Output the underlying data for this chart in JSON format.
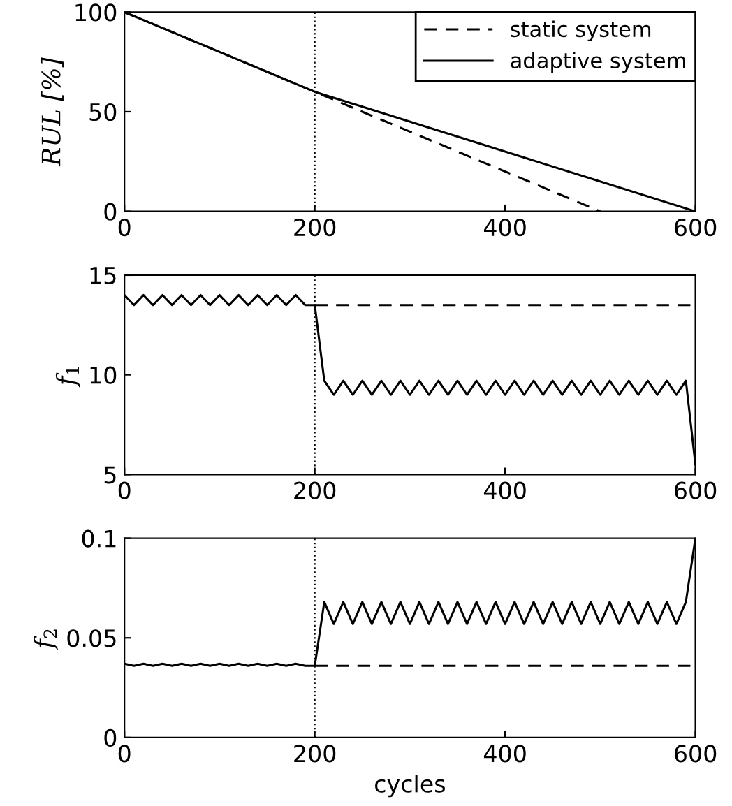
{
  "chart_data": [
    {
      "type": "line",
      "ylabel": "RUL [%]",
      "xlim": [
        0,
        600
      ],
      "xticks": [
        0,
        200,
        400,
        600
      ],
      "ylim": [
        0,
        100
      ],
      "yticks": [
        0,
        50,
        100
      ],
      "grid": false,
      "legend": "top right",
      "marker": "none",
      "ref_lines": [
        {
          "axis": "x",
          "value": 200,
          "line_style": "dotted",
          "color": "#000000"
        }
      ],
      "series": [
        {
          "name": "static system",
          "color": "#000000",
          "line_style": "dashed",
          "x": [
            0,
            200,
            500
          ],
          "values": [
            100,
            60,
            0
          ]
        },
        {
          "name": "adaptive system",
          "color": "#000000",
          "line_style": "solid",
          "x": [
            0,
            200,
            600
          ],
          "values": [
            100,
            60,
            0
          ]
        }
      ]
    },
    {
      "type": "line",
      "ylabel": "f$_{1}$",
      "xlim": [
        0,
        600
      ],
      "xticks": [
        0,
        200,
        400,
        600
      ],
      "ylim": [
        5,
        15
      ],
      "yticks": [
        5,
        10,
        15
      ],
      "grid": false,
      "marker": "none",
      "ref_lines": [
        {
          "axis": "x",
          "value": 200,
          "line_style": "dotted",
          "color": "#000000"
        }
      ],
      "series": [
        {
          "color": "#000000",
          "line_style": "dashed",
          "x": [
            200,
            600
          ],
          "values": [
            13.5,
            13.5
          ]
        },
        {
          "color": "#000000",
          "line_style": "solid",
          "x": [
            0,
            10,
            20,
            30,
            40,
            50,
            60,
            70,
            80,
            90,
            100,
            110,
            120,
            130,
            140,
            150,
            160,
            170,
            180,
            190,
            200,
            210,
            220,
            230,
            240,
            250,
            260,
            270,
            280,
            290,
            300,
            310,
            320,
            330,
            340,
            350,
            360,
            370,
            380,
            390,
            400,
            410,
            420,
            430,
            440,
            450,
            460,
            470,
            480,
            490,
            500,
            510,
            520,
            530,
            540,
            550,
            560,
            570,
            580,
            590,
            600
          ],
          "values": [
            14,
            13.5,
            14,
            13.5,
            14,
            13.5,
            14,
            13.5,
            14,
            13.5,
            14,
            13.5,
            14,
            13.5,
            14,
            13.5,
            14,
            13.5,
            14,
            13.5,
            13.5,
            9.7,
            9,
            9.7,
            9,
            9.7,
            9,
            9.7,
            9,
            9.7,
            9,
            9.7,
            9,
            9.7,
            9,
            9.7,
            9,
            9.7,
            9,
            9.7,
            9,
            9.7,
            9,
            9.7,
            9,
            9.7,
            9,
            9.7,
            9,
            9.7,
            9,
            9.7,
            9,
            9.7,
            9,
            9.7,
            9,
            9.7,
            9,
            9.7,
            5.5
          ]
        }
      ]
    },
    {
      "type": "line",
      "ylabel": "f$_{2}$",
      "xlabel": "cycles",
      "xlim": [
        0,
        600
      ],
      "xticks": [
        0,
        200,
        400,
        600
      ],
      "ylim": [
        0,
        0.1
      ],
      "yticks": [
        0,
        0.05,
        0.1
      ],
      "grid": false,
      "marker": "none",
      "ref_lines": [
        {
          "axis": "x",
          "value": 200,
          "line_style": "dotted",
          "color": "#000000"
        }
      ],
      "series": [
        {
          "color": "#000000",
          "line_style": "dashed",
          "x": [
            200,
            600
          ],
          "values": [
            0.036,
            0.036
          ]
        },
        {
          "color": "#000000",
          "line_style": "solid",
          "x": [
            0,
            10,
            20,
            30,
            40,
            50,
            60,
            70,
            80,
            90,
            100,
            110,
            120,
            130,
            140,
            150,
            160,
            170,
            180,
            190,
            200,
            210,
            220,
            230,
            240,
            250,
            260,
            270,
            280,
            290,
            300,
            310,
            320,
            330,
            340,
            350,
            360,
            370,
            380,
            390,
            400,
            410,
            420,
            430,
            440,
            450,
            460,
            470,
            480,
            490,
            500,
            510,
            520,
            530,
            540,
            550,
            560,
            570,
            580,
            590,
            600
          ],
          "values": [
            0.037,
            0.036,
            0.037,
            0.036,
            0.037,
            0.036,
            0.037,
            0.036,
            0.037,
            0.036,
            0.037,
            0.036,
            0.037,
            0.036,
            0.037,
            0.036,
            0.037,
            0.036,
            0.037,
            0.036,
            0.036,
            0.068,
            0.057,
            0.068,
            0.057,
            0.068,
            0.057,
            0.068,
            0.057,
            0.068,
            0.057,
            0.068,
            0.057,
            0.068,
            0.057,
            0.068,
            0.057,
            0.068,
            0.057,
            0.068,
            0.057,
            0.068,
            0.057,
            0.068,
            0.057,
            0.068,
            0.057,
            0.068,
            0.057,
            0.068,
            0.057,
            0.068,
            0.057,
            0.068,
            0.057,
            0.068,
            0.057,
            0.068,
            0.057,
            0.068,
            0.1
          ]
        }
      ]
    }
  ]
}
